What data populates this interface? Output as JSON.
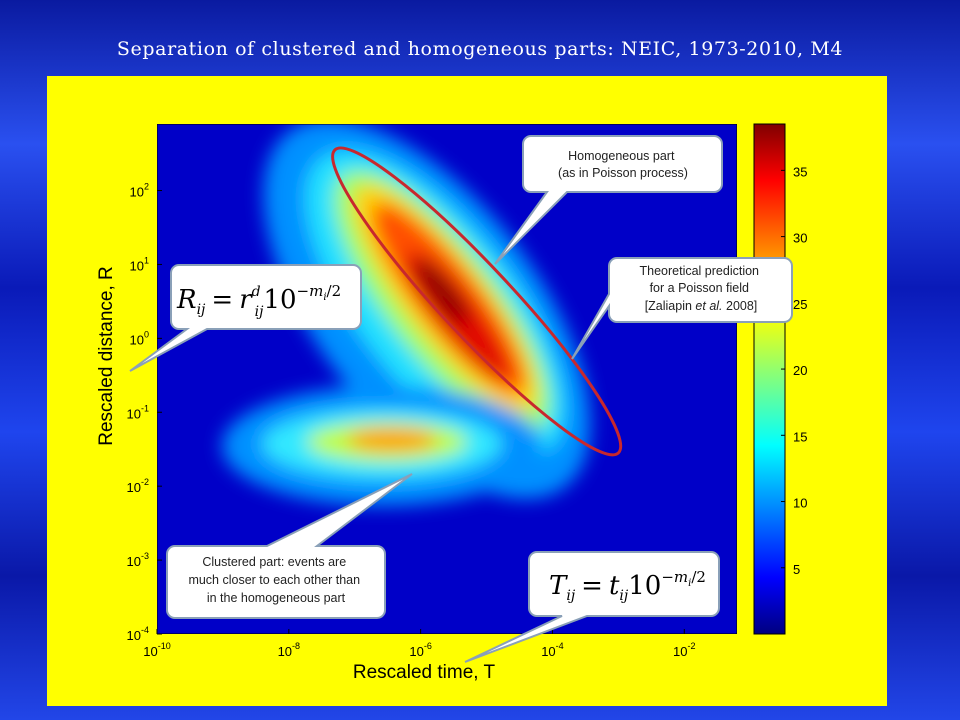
{
  "slide_title": "Separation of clustered and homogeneous parts: NEIC, 1973-2010, M4",
  "colors": {
    "slide_background": "#1a3ae0",
    "figure_background": "#ffff00",
    "ellipse": "#c8282d",
    "colormap": [
      "#000080",
      "#0000ff",
      "#0080ff",
      "#00ffff",
      "#80ff80",
      "#ffff00",
      "#ff8000",
      "#ff0000",
      "#800000"
    ]
  },
  "annotations": {
    "homogeneous": [
      "Homogeneous part",
      "(as in Poisson process)"
    ],
    "theoretical": [
      "Theoretical prediction",
      "for a Poisson field",
      "[Zaliapin ",
      "et al.",
      " 2008]"
    ],
    "clustered": [
      "Clustered part: events are",
      "much closer to each other than",
      "in the homogeneous part"
    ],
    "formula_R": {
      "lhs": "R",
      "lhs_sub": "ij",
      "eq": "=",
      "base": "r",
      "base_sup": "d",
      "base_sub": "ij",
      "ten": "10",
      "exp_sign": "−",
      "exp_var": "m",
      "exp_sub": "i",
      "exp_den": "/2"
    },
    "formula_T": {
      "lhs": "T",
      "lhs_sub": "ij",
      "eq": "=",
      "base": "t",
      "base_sub": "ij",
      "ten": "10",
      "exp_sign": "−",
      "exp_var": "m",
      "exp_sub": "i",
      "exp_den": "/2"
    }
  },
  "chart_data": {
    "type": "heatmap",
    "title": "",
    "xlabel": "Rescaled time, T",
    "ylabel": "Rescaled distance, R",
    "x_scale": "log",
    "y_scale": "log",
    "xlim_log10": [
      -10,
      -1.2
    ],
    "ylim_log10": [
      -4,
      2.9
    ],
    "x_ticks": [
      {
        "base": "10",
        "exp": "-10"
      },
      {
        "base": "10",
        "exp": "-8"
      },
      {
        "base": "10",
        "exp": "-6"
      },
      {
        "base": "10",
        "exp": "-4"
      },
      {
        "base": "10",
        "exp": "-2"
      }
    ],
    "x_tick_values": [
      -10,
      -8,
      -6,
      -4,
      -2
    ],
    "y_ticks": [
      {
        "base": "10",
        "exp": "-4"
      },
      {
        "base": "10",
        "exp": "-3"
      },
      {
        "base": "10",
        "exp": "-2"
      },
      {
        "base": "10",
        "exp": "-1"
      },
      {
        "base": "10",
        "exp": "0"
      },
      {
        "base": "10",
        "exp": "1"
      },
      {
        "base": "10",
        "exp": "2"
      }
    ],
    "y_tick_values": [
      -4,
      -3,
      -2,
      -1,
      0,
      1,
      2
    ],
    "colorbar": {
      "ticks": [
        "5",
        "10",
        "15",
        "20",
        "25",
        "30",
        "35"
      ],
      "tick_values": [
        5,
        10,
        15,
        20,
        25,
        30,
        35
      ],
      "range": [
        0,
        38.5
      ]
    },
    "components": [
      {
        "name": "homogeneous",
        "center_log10": [
          -5.6,
          0.3
        ],
        "peak": 38
      },
      {
        "name": "clustered",
        "center_log10": [
          -6.0,
          -1.45
        ],
        "peak": 26
      }
    ],
    "background_value": 2,
    "ellipse_log10": {
      "center": [
        -5.1,
        0.55
      ],
      "major_end_1": [
        -7.3,
        2.55
      ],
      "major_end_2": [
        -3.0,
        -1.55
      ]
    }
  }
}
